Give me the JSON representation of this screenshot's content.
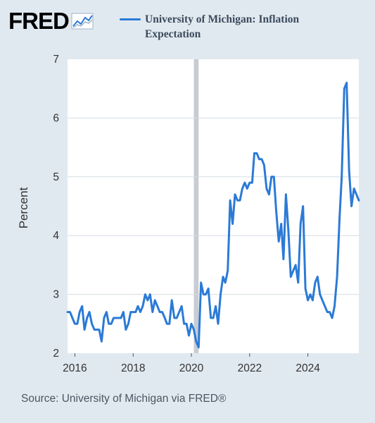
{
  "header": {
    "logo_text": "FRED",
    "logo_icon": "graph-line-icon"
  },
  "colors": {
    "series": "#2b7ad6",
    "background": "#e1e9f0",
    "plot_background": "#ffffff",
    "grid": "#d6dde3",
    "recession": "#c8ccd3"
  },
  "footer": {
    "source": "Source: University of Michigan via FRED®"
  },
  "chart_data": {
    "type": "line",
    "title": "",
    "xlabel": "",
    "ylabel": "Percent",
    "ylim": [
      2,
      7
    ],
    "yticks": [
      2,
      3,
      4,
      5,
      6,
      7
    ],
    "xlim": [
      "2015-10-01",
      "2025-10-01"
    ],
    "xticks": [
      "2016-01-01",
      "2018-01-01",
      "2020-01-01",
      "2022-01-01",
      "2024-01-01"
    ],
    "xtick_labels": [
      "2016",
      "2018",
      "2020",
      "2022",
      "2024"
    ],
    "grid": true,
    "legend": "top",
    "recession_band": [
      "2020-02-01",
      "2020-04-01"
    ],
    "series": [
      {
        "name": "University of Michigan: Inflation Expectation",
        "x": [
          "2015-10-01",
          "2015-11-01",
          "2015-12-01",
          "2016-01-01",
          "2016-02-01",
          "2016-03-01",
          "2016-04-01",
          "2016-05-01",
          "2016-06-01",
          "2016-07-01",
          "2016-08-01",
          "2016-09-01",
          "2016-10-01",
          "2016-11-01",
          "2016-12-01",
          "2017-01-01",
          "2017-02-01",
          "2017-03-01",
          "2017-04-01",
          "2017-05-01",
          "2017-06-01",
          "2017-07-01",
          "2017-08-01",
          "2017-09-01",
          "2017-10-01",
          "2017-11-01",
          "2017-12-01",
          "2018-01-01",
          "2018-02-01",
          "2018-03-01",
          "2018-04-01",
          "2018-05-01",
          "2018-06-01",
          "2018-07-01",
          "2018-08-01",
          "2018-09-01",
          "2018-10-01",
          "2018-11-01",
          "2018-12-01",
          "2019-01-01",
          "2019-02-01",
          "2019-03-01",
          "2019-04-01",
          "2019-05-01",
          "2019-06-01",
          "2019-07-01",
          "2019-08-01",
          "2019-09-01",
          "2019-10-01",
          "2019-11-01",
          "2019-12-01",
          "2020-01-01",
          "2020-02-01",
          "2020-03-01",
          "2020-04-01",
          "2020-05-01",
          "2020-06-01",
          "2020-07-01",
          "2020-08-01",
          "2020-09-01",
          "2020-10-01",
          "2020-11-01",
          "2020-12-01",
          "2021-01-01",
          "2021-02-01",
          "2021-03-01",
          "2021-04-01",
          "2021-05-01",
          "2021-06-01",
          "2021-07-01",
          "2021-08-01",
          "2021-09-01",
          "2021-10-01",
          "2021-11-01",
          "2021-12-01",
          "2022-01-01",
          "2022-02-01",
          "2022-03-01",
          "2022-04-01",
          "2022-05-01",
          "2022-06-01",
          "2022-07-01",
          "2022-08-01",
          "2022-09-01",
          "2022-10-01",
          "2022-11-01",
          "2022-12-01",
          "2023-01-01",
          "2023-02-01",
          "2023-03-01",
          "2023-04-01",
          "2023-05-01",
          "2023-06-01",
          "2023-07-01",
          "2023-08-01",
          "2023-09-01",
          "2023-10-01",
          "2023-11-01",
          "2023-12-01",
          "2024-01-01",
          "2024-02-01",
          "2024-03-01",
          "2024-04-01",
          "2024-05-01",
          "2024-06-01",
          "2024-07-01",
          "2024-08-01",
          "2024-09-01",
          "2024-10-01",
          "2024-11-01",
          "2024-12-01",
          "2025-01-01",
          "2025-02-01",
          "2025-03-01",
          "2025-04-01",
          "2025-05-01",
          "2025-06-01",
          "2025-07-01",
          "2025-08-01",
          "2025-09-01",
          "2025-10-01"
        ],
        "values": [
          2.7,
          2.7,
          2.6,
          2.5,
          2.5,
          2.7,
          2.8,
          2.4,
          2.6,
          2.7,
          2.5,
          2.4,
          2.4,
          2.4,
          2.2,
          2.6,
          2.7,
          2.5,
          2.5,
          2.6,
          2.6,
          2.6,
          2.6,
          2.7,
          2.4,
          2.5,
          2.7,
          2.7,
          2.7,
          2.8,
          2.7,
          2.8,
          3.0,
          2.9,
          3.0,
          2.7,
          2.9,
          2.8,
          2.7,
          2.7,
          2.6,
          2.5,
          2.5,
          2.9,
          2.6,
          2.6,
          2.7,
          2.8,
          2.5,
          2.5,
          2.3,
          2.5,
          2.4,
          2.2,
          2.1,
          3.2,
          3.0,
          3.0,
          3.1,
          2.6,
          2.6,
          2.8,
          2.5,
          3.0,
          3.3,
          3.2,
          3.4,
          4.6,
          4.2,
          4.7,
          4.6,
          4.6,
          4.8,
          4.9,
          4.8,
          4.9,
          4.9,
          5.4,
          5.4,
          5.3,
          5.3,
          5.2,
          4.8,
          4.7,
          5.0,
          5.0,
          4.4,
          3.9,
          4.2,
          3.6,
          4.7,
          4.1,
          3.3,
          3.4,
          3.5,
          3.2,
          4.2,
          4.5,
          3.1,
          2.9,
          3.0,
          2.9,
          3.2,
          3.3,
          3.0,
          2.9,
          2.8,
          2.7,
          2.7,
          2.6,
          2.8,
          3.3,
          4.3,
          5.0,
          6.5,
          6.6,
          5.1,
          4.5,
          4.8,
          4.7,
          4.6
        ]
      }
    ]
  }
}
